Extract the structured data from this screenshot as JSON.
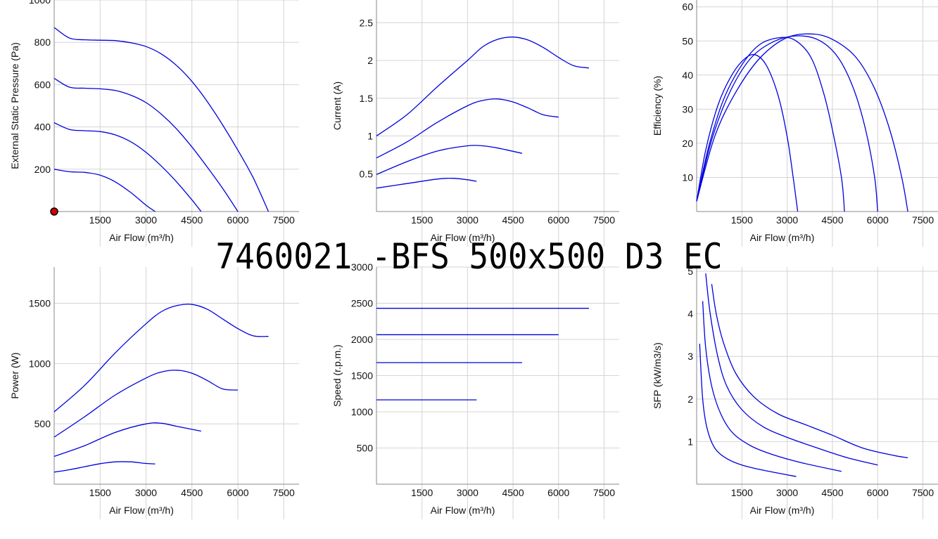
{
  "title": "7460021 -BFS 500x500 D3 EC",
  "colors": {
    "curve": "#0000e0",
    "grid": "#d4d4d4",
    "axis": "#888888",
    "marker_fill": "#d40000",
    "marker_stroke": "#000000"
  },
  "chart_data": [
    {
      "id": "pressure",
      "type": "line",
      "title": "",
      "xlabel": "Air Flow (m³/h)",
      "ylabel": "External Static Pressure (Pa)",
      "xlim": [
        0,
        8000
      ],
      "ylim": [
        0,
        1000
      ],
      "xticks": [
        1500,
        3000,
        4500,
        6000,
        7500
      ],
      "yticks": [
        200,
        400,
        600,
        800,
        1000
      ],
      "marker": {
        "x": 0,
        "y": 0
      },
      "series": [
        {
          "points": [
            [
              0,
              200
            ],
            [
              500,
              188
            ],
            [
              1000,
              185
            ],
            [
              1500,
              172
            ],
            [
              2000,
              140
            ],
            [
              2500,
              90
            ],
            [
              3000,
              30
            ],
            [
              3300,
              0
            ]
          ]
        },
        {
          "points": [
            [
              0,
              420
            ],
            [
              500,
              388
            ],
            [
              1000,
              382
            ],
            [
              1500,
              378
            ],
            [
              2000,
              362
            ],
            [
              2500,
              330
            ],
            [
              3000,
              280
            ],
            [
              3500,
              215
            ],
            [
              4000,
              140
            ],
            [
              4500,
              55
            ],
            [
              4800,
              0
            ]
          ]
        },
        {
          "points": [
            [
              0,
              630
            ],
            [
              500,
              588
            ],
            [
              1000,
              583
            ],
            [
              1500,
              580
            ],
            [
              2000,
              572
            ],
            [
              2500,
              550
            ],
            [
              3000,
              515
            ],
            [
              3500,
              460
            ],
            [
              4000,
              390
            ],
            [
              4500,
              305
            ],
            [
              5000,
              210
            ],
            [
              5500,
              110
            ],
            [
              6000,
              0
            ]
          ]
        },
        {
          "points": [
            [
              0,
              870
            ],
            [
              500,
              820
            ],
            [
              1000,
              812
            ],
            [
              1500,
              810
            ],
            [
              2000,
              808
            ],
            [
              2500,
              798
            ],
            [
              3000,
              780
            ],
            [
              3500,
              745
            ],
            [
              4000,
              690
            ],
            [
              4500,
              615
            ],
            [
              5000,
              520
            ],
            [
              5500,
              410
            ],
            [
              6000,
              290
            ],
            [
              6500,
              160
            ],
            [
              7000,
              0
            ]
          ]
        }
      ]
    },
    {
      "id": "current",
      "type": "line",
      "title": "",
      "xlabel": "Air Flow (m³/h)",
      "ylabel": "Current (A)",
      "xlim": [
        0,
        8000
      ],
      "ylim": [
        0,
        2.8
      ],
      "xticks": [
        1500,
        3000,
        4500,
        6000,
        7500
      ],
      "yticks": [
        0.5,
        1,
        1.5,
        2,
        2.5
      ],
      "series": [
        {
          "points": [
            [
              0,
              0.31
            ],
            [
              1000,
              0.37
            ],
            [
              2000,
              0.43
            ],
            [
              2500,
              0.44
            ],
            [
              3000,
              0.42
            ],
            [
              3300,
              0.4
            ]
          ]
        },
        {
          "points": [
            [
              0,
              0.49
            ],
            [
              1000,
              0.66
            ],
            [
              2000,
              0.8
            ],
            [
              3000,
              0.87
            ],
            [
              3500,
              0.87
            ],
            [
              4000,
              0.84
            ],
            [
              4800,
              0.77
            ]
          ]
        },
        {
          "points": [
            [
              0,
              0.71
            ],
            [
              1000,
              0.92
            ],
            [
              2000,
              1.18
            ],
            [
              3000,
              1.4
            ],
            [
              3500,
              1.47
            ],
            [
              4000,
              1.49
            ],
            [
              4500,
              1.45
            ],
            [
              5000,
              1.37
            ],
            [
              5500,
              1.28
            ],
            [
              6000,
              1.25
            ]
          ]
        },
        {
          "points": [
            [
              0,
              1.0
            ],
            [
              1000,
              1.28
            ],
            [
              2000,
              1.65
            ],
            [
              3000,
              2.0
            ],
            [
              3500,
              2.18
            ],
            [
              4000,
              2.28
            ],
            [
              4500,
              2.31
            ],
            [
              5000,
              2.27
            ],
            [
              5500,
              2.17
            ],
            [
              6000,
              2.04
            ],
            [
              6500,
              1.93
            ],
            [
              7000,
              1.9
            ]
          ]
        }
      ]
    },
    {
      "id": "efficiency",
      "type": "line",
      "title": "",
      "xlabel": "Air Flow (m³/h)",
      "ylabel": "Efficiency (%)",
      "xlim": [
        0,
        8000
      ],
      "ylim": [
        0,
        62
      ],
      "xticks": [
        1500,
        3000,
        4500,
        6000,
        7500
      ],
      "yticks": [
        10,
        20,
        30,
        40,
        50,
        60
      ],
      "series": [
        {
          "points": [
            [
              0,
              3
            ],
            [
              300,
              18
            ],
            [
              700,
              31
            ],
            [
              1100,
              39
            ],
            [
              1500,
              44
            ],
            [
              1900,
              46
            ],
            [
              2300,
              43
            ],
            [
              2700,
              34
            ],
            [
              3000,
              22
            ],
            [
              3200,
              10
            ],
            [
              3350,
              0
            ]
          ]
        },
        {
          "points": [
            [
              0,
              3
            ],
            [
              400,
              19
            ],
            [
              900,
              33
            ],
            [
              1500,
              43
            ],
            [
              2100,
              49
            ],
            [
              2800,
              51
            ],
            [
              3300,
              50
            ],
            [
              3800,
              45
            ],
            [
              4200,
              35
            ],
            [
              4500,
              24
            ],
            [
              4800,
              10
            ],
            [
              4900,
              0
            ]
          ]
        },
        {
          "points": [
            [
              0,
              3
            ],
            [
              500,
              21
            ],
            [
              1100,
              35
            ],
            [
              1800,
              45
            ],
            [
              2600,
              50
            ],
            [
              3400,
              51.5
            ],
            [
              4100,
              50
            ],
            [
              4700,
              45
            ],
            [
              5200,
              36
            ],
            [
              5600,
              24
            ],
            [
              5900,
              10
            ],
            [
              6000,
              0
            ]
          ]
        },
        {
          "points": [
            [
              0,
              3
            ],
            [
              600,
              22
            ],
            [
              1300,
              35
            ],
            [
              2100,
              45
            ],
            [
              3000,
              51
            ],
            [
              3900,
              52
            ],
            [
              4600,
              50
            ],
            [
              5300,
              45
            ],
            [
              5900,
              36
            ],
            [
              6400,
              24
            ],
            [
              6800,
              10
            ],
            [
              7000,
              0
            ]
          ]
        }
      ]
    },
    {
      "id": "power",
      "type": "line",
      "title": "",
      "xlabel": "Air Flow (m³/h)",
      "ylabel": "Power (W)",
      "xlim": [
        0,
        8000
      ],
      "ylim": [
        0,
        1800
      ],
      "xticks": [
        1500,
        3000,
        4500,
        6000,
        7500
      ],
      "yticks": [
        500,
        1000,
        1500
      ],
      "series": [
        {
          "points": [
            [
              0,
              100
            ],
            [
              500,
              120
            ],
            [
              1000,
              145
            ],
            [
              1500,
              170
            ],
            [
              2000,
              185
            ],
            [
              2500,
              185
            ],
            [
              3000,
              172
            ],
            [
              3300,
              168
            ]
          ]
        },
        {
          "points": [
            [
              0,
              230
            ],
            [
              1000,
              320
            ],
            [
              2000,
              430
            ],
            [
              3000,
              500
            ],
            [
              3500,
              505
            ],
            [
              4000,
              480
            ],
            [
              4800,
              440
            ]
          ]
        },
        {
          "points": [
            [
              0,
              390
            ],
            [
              1000,
              560
            ],
            [
              2000,
              740
            ],
            [
              3000,
              880
            ],
            [
              3500,
              930
            ],
            [
              4000,
              945
            ],
            [
              4500,
              920
            ],
            [
              5000,
              860
            ],
            [
              5500,
              790
            ],
            [
              6000,
              780
            ]
          ]
        },
        {
          "points": [
            [
              0,
              600
            ],
            [
              1000,
              820
            ],
            [
              2000,
              1090
            ],
            [
              3000,
              1330
            ],
            [
              3500,
              1430
            ],
            [
              4000,
              1480
            ],
            [
              4500,
              1490
            ],
            [
              5000,
              1450
            ],
            [
              5500,
              1370
            ],
            [
              6000,
              1290
            ],
            [
              6500,
              1230
            ],
            [
              7000,
              1225
            ]
          ]
        }
      ]
    },
    {
      "id": "speed",
      "type": "line",
      "title": "",
      "xlabel": "Air Flow (m³/h)",
      "ylabel": "Speed (r.p.m.)",
      "xlim": [
        0,
        8000
      ],
      "ylim": [
        0,
        3000
      ],
      "xticks": [
        1500,
        3000,
        4500,
        6000,
        7500
      ],
      "yticks": [
        500,
        1000,
        1500,
        2000,
        2500,
        3000
      ],
      "series": [
        {
          "points": [
            [
              0,
              1165
            ],
            [
              3300,
              1165
            ]
          ]
        },
        {
          "points": [
            [
              0,
              1680
            ],
            [
              4800,
              1680
            ]
          ]
        },
        {
          "points": [
            [
              0,
              2065
            ],
            [
              6000,
              2065
            ]
          ]
        },
        {
          "points": [
            [
              0,
              2430
            ],
            [
              7000,
              2430
            ]
          ]
        }
      ]
    },
    {
      "id": "sfp",
      "type": "line",
      "title": "",
      "xlabel": "Air Flow (m³/h)",
      "ylabel": "SFP (kW/m3/s)",
      "xlim": [
        0,
        8000
      ],
      "ylim": [
        0,
        5.1
      ],
      "xticks": [
        1500,
        3000,
        4500,
        6000,
        7500
      ],
      "yticks": [
        1,
        2,
        3,
        4,
        5
      ],
      "series": [
        {
          "points": [
            [
              100,
              3.3
            ],
            [
              200,
              2.0
            ],
            [
              350,
              1.3
            ],
            [
              600,
              0.85
            ],
            [
              1000,
              0.6
            ],
            [
              1500,
              0.45
            ],
            [
              2200,
              0.33
            ],
            [
              3300,
              0.18
            ]
          ]
        },
        {
          "points": [
            [
              200,
              4.3
            ],
            [
              300,
              3.2
            ],
            [
              500,
              2.3
            ],
            [
              800,
              1.65
            ],
            [
              1200,
              1.2
            ],
            [
              1800,
              0.9
            ],
            [
              2500,
              0.7
            ],
            [
              3500,
              0.5
            ],
            [
              4800,
              0.3
            ]
          ]
        },
        {
          "points": [
            [
              300,
              4.95
            ],
            [
              450,
              4.0
            ],
            [
              700,
              3.0
            ],
            [
              1000,
              2.3
            ],
            [
              1500,
              1.75
            ],
            [
              2200,
              1.35
            ],
            [
              3000,
              1.1
            ],
            [
              4000,
              0.85
            ],
            [
              5000,
              0.62
            ],
            [
              6000,
              0.45
            ]
          ]
        },
        {
          "points": [
            [
              500,
              4.7
            ],
            [
              650,
              4.0
            ],
            [
              900,
              3.3
            ],
            [
              1300,
              2.6
            ],
            [
              1900,
              2.05
            ],
            [
              2700,
              1.65
            ],
            [
              3600,
              1.4
            ],
            [
              4500,
              1.15
            ],
            [
              5500,
              0.85
            ],
            [
              6500,
              0.68
            ],
            [
              7000,
              0.62
            ]
          ]
        }
      ]
    }
  ]
}
